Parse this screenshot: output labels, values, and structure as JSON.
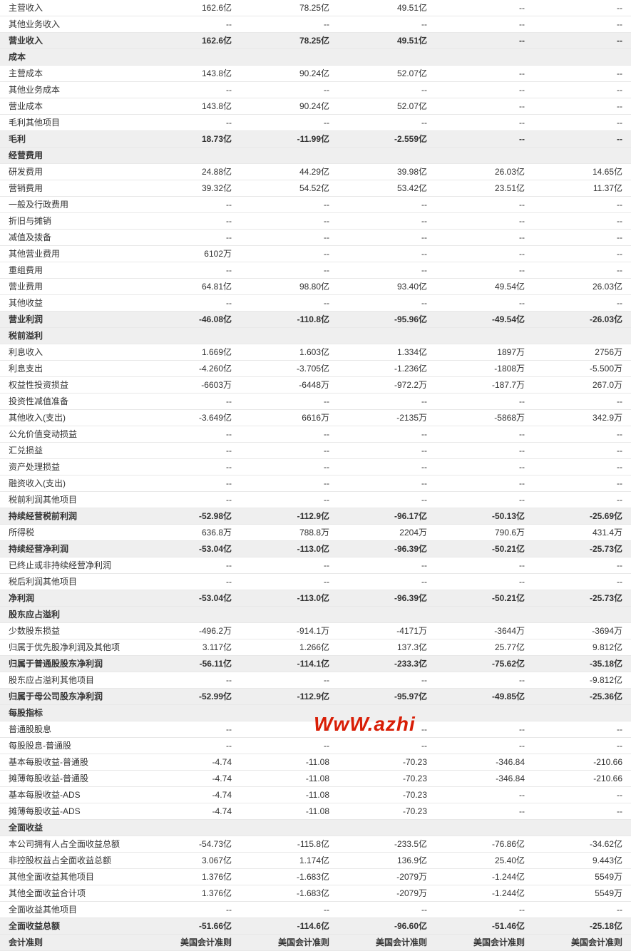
{
  "rows": [
    {
      "label": "主营收入",
      "vals": [
        "162.6亿",
        "78.25亿",
        "49.51亿",
        "--",
        "--"
      ],
      "style": "normal"
    },
    {
      "label": "其他业务收入",
      "vals": [
        "--",
        "--",
        "--",
        "--",
        "--"
      ],
      "style": "normal"
    },
    {
      "label": "营业收入",
      "vals": [
        "162.6亿",
        "78.25亿",
        "49.51亿",
        "--",
        "--"
      ],
      "style": "bold"
    },
    {
      "label": "成本",
      "vals": [
        "",
        "",
        "",
        "",
        ""
      ],
      "style": "section"
    },
    {
      "label": "主营成本",
      "vals": [
        "143.8亿",
        "90.24亿",
        "52.07亿",
        "--",
        "--"
      ],
      "style": "normal"
    },
    {
      "label": "其他业务成本",
      "vals": [
        "--",
        "--",
        "--",
        "--",
        "--"
      ],
      "style": "normal"
    },
    {
      "label": "营业成本",
      "vals": [
        "143.8亿",
        "90.24亿",
        "52.07亿",
        "--",
        "--"
      ],
      "style": "normal"
    },
    {
      "label": "毛利其他项目",
      "vals": [
        "--",
        "--",
        "--",
        "--",
        "--"
      ],
      "style": "normal"
    },
    {
      "label": "毛利",
      "vals": [
        "18.73亿",
        "-11.99亿",
        "-2.559亿",
        "--",
        "--"
      ],
      "style": "bold"
    },
    {
      "label": "经营费用",
      "vals": [
        "",
        "",
        "",
        "",
        ""
      ],
      "style": "section"
    },
    {
      "label": "研发费用",
      "vals": [
        "24.88亿",
        "44.29亿",
        "39.98亿",
        "26.03亿",
        "14.65亿"
      ],
      "style": "normal"
    },
    {
      "label": "营销费用",
      "vals": [
        "39.32亿",
        "54.52亿",
        "53.42亿",
        "23.51亿",
        "11.37亿"
      ],
      "style": "normal"
    },
    {
      "label": "一般及行政费用",
      "vals": [
        "--",
        "--",
        "--",
        "--",
        "--"
      ],
      "style": "normal"
    },
    {
      "label": "折旧与摊销",
      "vals": [
        "--",
        "--",
        "--",
        "--",
        "--"
      ],
      "style": "normal"
    },
    {
      "label": "减值及拨备",
      "vals": [
        "--",
        "--",
        "--",
        "--",
        "--"
      ],
      "style": "normal"
    },
    {
      "label": "其他营业费用",
      "vals": [
        "6102万",
        "--",
        "--",
        "--",
        "--"
      ],
      "style": "normal"
    },
    {
      "label": "重组费用",
      "vals": [
        "--",
        "--",
        "--",
        "--",
        "--"
      ],
      "style": "normal"
    },
    {
      "label": "营业费用",
      "vals": [
        "64.81亿",
        "98.80亿",
        "93.40亿",
        "49.54亿",
        "26.03亿"
      ],
      "style": "normal"
    },
    {
      "label": "其他收益",
      "vals": [
        "--",
        "--",
        "--",
        "--",
        "--"
      ],
      "style": "normal"
    },
    {
      "label": "营业利润",
      "vals": [
        "-46.08亿",
        "-110.8亿",
        "-95.96亿",
        "-49.54亿",
        "-26.03亿"
      ],
      "style": "bold"
    },
    {
      "label": "税前溢利",
      "vals": [
        "",
        "",
        "",
        "",
        ""
      ],
      "style": "section"
    },
    {
      "label": "利息收入",
      "vals": [
        "1.669亿",
        "1.603亿",
        "1.334亿",
        "1897万",
        "2756万"
      ],
      "style": "normal"
    },
    {
      "label": "利息支出",
      "vals": [
        "-4.260亿",
        "-3.705亿",
        "-1.236亿",
        "-1808万",
        "-5.500万"
      ],
      "style": "normal"
    },
    {
      "label": "权益性投资损益",
      "vals": [
        "-6603万",
        "-6448万",
        "-972.2万",
        "-187.7万",
        "267.0万"
      ],
      "style": "normal"
    },
    {
      "label": "投资性减值准备",
      "vals": [
        "--",
        "--",
        "--",
        "--",
        "--"
      ],
      "style": "normal"
    },
    {
      "label": "其他收入(支出)",
      "vals": [
        "-3.649亿",
        "6616万",
        "-2135万",
        "-5868万",
        "342.9万"
      ],
      "style": "normal"
    },
    {
      "label": "公允价值变动损益",
      "vals": [
        "--",
        "--",
        "--",
        "--",
        "--"
      ],
      "style": "normal"
    },
    {
      "label": "汇兑损益",
      "vals": [
        "--",
        "--",
        "--",
        "--",
        "--"
      ],
      "style": "normal"
    },
    {
      "label": "资产处理损益",
      "vals": [
        "--",
        "--",
        "--",
        "--",
        "--"
      ],
      "style": "normal"
    },
    {
      "label": "融资收入(支出)",
      "vals": [
        "--",
        "--",
        "--",
        "--",
        "--"
      ],
      "style": "normal"
    },
    {
      "label": "税前利润其他项目",
      "vals": [
        "--",
        "--",
        "--",
        "--",
        "--"
      ],
      "style": "normal"
    },
    {
      "label": "持续经营税前利润",
      "vals": [
        "-52.98亿",
        "-112.9亿",
        "-96.17亿",
        "-50.13亿",
        "-25.69亿"
      ],
      "style": "bold"
    },
    {
      "label": "所得税",
      "vals": [
        "636.8万",
        "788.8万",
        "2204万",
        "790.6万",
        "431.4万"
      ],
      "style": "normal"
    },
    {
      "label": "持续经营净利润",
      "vals": [
        "-53.04亿",
        "-113.0亿",
        "-96.39亿",
        "-50.21亿",
        "-25.73亿"
      ],
      "style": "bold"
    },
    {
      "label": "已终止或非持续经营净利润",
      "vals": [
        "--",
        "--",
        "--",
        "--",
        "--"
      ],
      "style": "normal"
    },
    {
      "label": "税后利润其他项目",
      "vals": [
        "--",
        "--",
        "--",
        "--",
        "--"
      ],
      "style": "normal"
    },
    {
      "label": "净利润",
      "vals": [
        "-53.04亿",
        "-113.0亿",
        "-96.39亿",
        "-50.21亿",
        "-25.73亿"
      ],
      "style": "bold"
    },
    {
      "label": "股东应占溢利",
      "vals": [
        "",
        "",
        "",
        "",
        ""
      ],
      "style": "section"
    },
    {
      "label": "少数股东损益",
      "vals": [
        "-496.2万",
        "-914.1万",
        "-4171万",
        "-3644万",
        "-3694万"
      ],
      "style": "normal"
    },
    {
      "label": "归属于优先股净利润及其他项",
      "vals": [
        "3.117亿",
        "1.266亿",
        "137.3亿",
        "25.77亿",
        "9.812亿"
      ],
      "style": "normal"
    },
    {
      "label": "归属于普通股股东净利润",
      "vals": [
        "-56.11亿",
        "-114.1亿",
        "-233.3亿",
        "-75.62亿",
        "-35.18亿"
      ],
      "style": "bold"
    },
    {
      "label": "股东应占溢利其他项目",
      "vals": [
        "--",
        "--",
        "--",
        "--",
        "-9.812亿"
      ],
      "style": "normal"
    },
    {
      "label": "归属于母公司股东净利润",
      "vals": [
        "-52.99亿",
        "-112.9亿",
        "-95.97亿",
        "-49.85亿",
        "-25.36亿"
      ],
      "style": "bold"
    },
    {
      "label": "每股指标",
      "vals": [
        "",
        "",
        "",
        "",
        ""
      ],
      "style": "section"
    },
    {
      "label": "普通股股息",
      "vals": [
        "--",
        "--",
        "--",
        "--",
        "--"
      ],
      "style": "normal"
    },
    {
      "label": "每股股息-普通股",
      "vals": [
        "--",
        "--",
        "--",
        "--",
        "--"
      ],
      "style": "normal"
    },
    {
      "label": "基本每股收益-普通股",
      "vals": [
        "-4.74",
        "-11.08",
        "-70.23",
        "-346.84",
        "-210.66"
      ],
      "style": "normal"
    },
    {
      "label": "摊薄每股收益-普通股",
      "vals": [
        "-4.74",
        "-11.08",
        "-70.23",
        "-346.84",
        "-210.66"
      ],
      "style": "normal"
    },
    {
      "label": "基本每股收益-ADS",
      "vals": [
        "-4.74",
        "-11.08",
        "-70.23",
        "--",
        "--"
      ],
      "style": "normal"
    },
    {
      "label": "摊薄每股收益-ADS",
      "vals": [
        "-4.74",
        "-11.08",
        "-70.23",
        "--",
        "--"
      ],
      "style": "normal"
    },
    {
      "label": "全面收益",
      "vals": [
        "",
        "",
        "",
        "",
        ""
      ],
      "style": "section"
    },
    {
      "label": "本公司拥有人占全面收益总额",
      "vals": [
        "-54.73亿",
        "-115.8亿",
        "-233.5亿",
        "-76.86亿",
        "-34.62亿"
      ],
      "style": "normal"
    },
    {
      "label": "非控股权益占全面收益总额",
      "vals": [
        "3.067亿",
        "1.174亿",
        "136.9亿",
        "25.40亿",
        "9.443亿"
      ],
      "style": "normal"
    },
    {
      "label": "其他全面收益其他项目",
      "vals": [
        "1.376亿",
        "-1.683亿",
        "-2079万",
        "-1.244亿",
        "5549万"
      ],
      "style": "normal"
    },
    {
      "label": "其他全面收益合计项",
      "vals": [
        "1.376亿",
        "-1.683亿",
        "-2079万",
        "-1.244亿",
        "5549万"
      ],
      "style": "normal"
    },
    {
      "label": "全面收益其他项目",
      "vals": [
        "--",
        "--",
        "--",
        "--",
        "--"
      ],
      "style": "normal"
    },
    {
      "label": "全面收益总额",
      "vals": [
        "-51.66亿",
        "-114.6亿",
        "-96.60亿",
        "-51.46亿",
        "-25.18亿"
      ],
      "style": "bold"
    },
    {
      "label": "会计准则",
      "vals": [
        "美国会计准则",
        "美国会计准则",
        "美国会计准则",
        "美国会计准则",
        "美国会计准则"
      ],
      "style": "bold"
    }
  ],
  "watermark": {
    "p1": "W",
    "p2": "w",
    "p3": "W",
    "dot": ".",
    "rest": "azhi"
  },
  "colors": {
    "border": "#e8e8e8",
    "bold_bg": "#efefef",
    "text": "#333333",
    "watermark": "#d81e06"
  }
}
